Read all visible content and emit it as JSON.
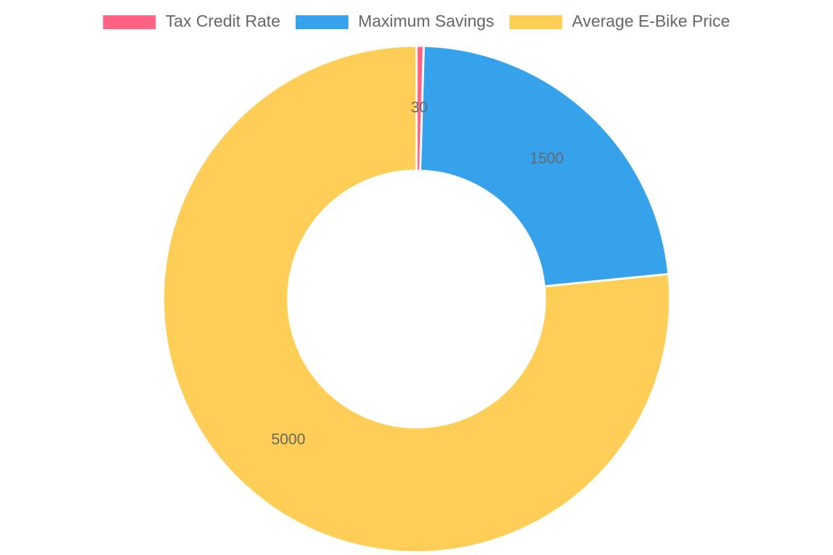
{
  "chart_data": {
    "type": "doughnut",
    "categories": [
      "Tax Credit Rate",
      "Maximum Savings",
      "Average E-Bike Price"
    ],
    "values": [
      30,
      1500,
      5000
    ],
    "colors": [
      "#FF6384",
      "#36A2EB",
      "#FFCE56"
    ],
    "legend_position": "top",
    "grid": false
  }
}
